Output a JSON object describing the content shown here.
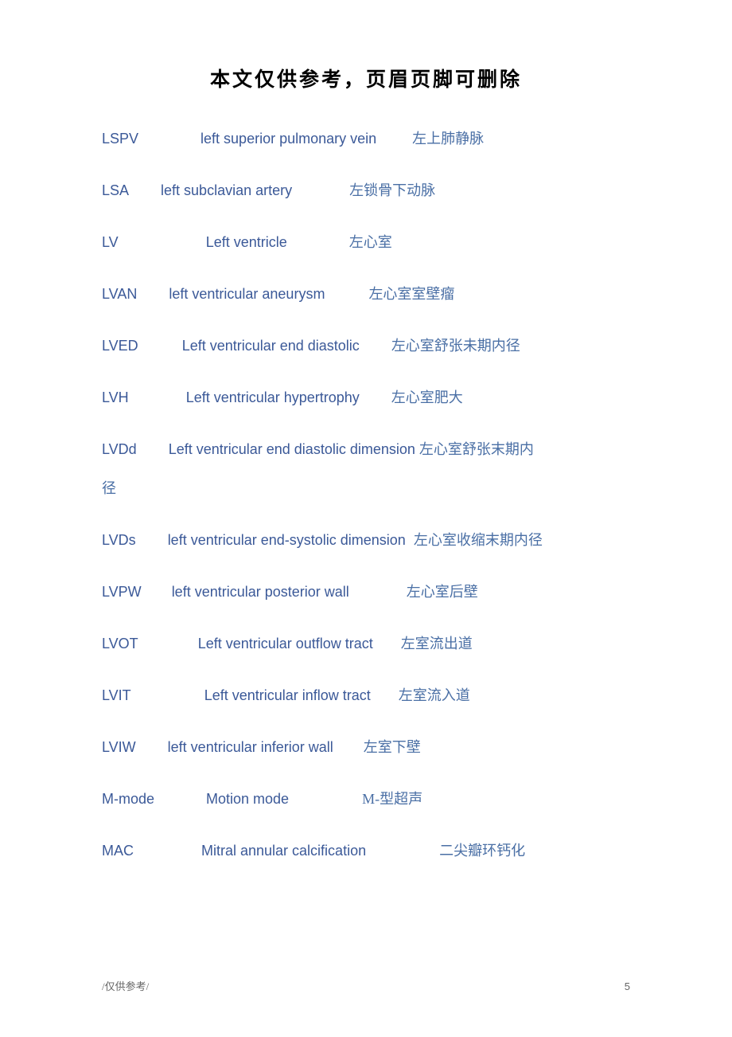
{
  "header": {
    "title": "本文仅供参考，页眉页脚可删除"
  },
  "entries": [
    {
      "abbr": "LSPV",
      "english": "left superior pulmonary vein",
      "chinese": "左上肺静脉",
      "gap1": 78,
      "gap2": 45
    },
    {
      "abbr": "LSA",
      "english": "left subclavian artery",
      "chinese": "左锁骨下动脉",
      "gap1": 40,
      "gap2": 72
    },
    {
      "abbr": "LV",
      "english": "Left ventricle",
      "chinese": "左心室",
      "gap1": 110,
      "gap2": 78
    },
    {
      "abbr": "LVAN",
      "english": "left ventricular aneurysm",
      "chinese": "左心室室壁瘤",
      "gap1": 40,
      "gap2": 55
    },
    {
      "abbr": "LVED",
      "english": "Left ventricular end diastolic",
      "chinese": "左心室舒张未期内径",
      "gap1": 55,
      "gap2": 40
    },
    {
      "abbr": "LVH",
      "english": "Left ventricular hypertrophy",
      "chinese": "左心室肥大",
      "gap1": 72,
      "gap2": 40
    },
    {
      "abbr": "LVDd",
      "english": "Left ventricular end diastolic dimension",
      "chinese": "左心室舒张末期内",
      "chinese_cont": "径",
      "gap1": 40,
      "gap2": 5,
      "wrapped": true
    },
    {
      "abbr": "LVDs",
      "english": "left ventricular end-systolic dimension",
      "chinese": "左心室收缩末期内径",
      "gap1": 40,
      "gap2": 10
    },
    {
      "abbr": "LVPW",
      "english": "left ventricular posterior wall",
      "chinese": "左心室后壁",
      "gap1": 38,
      "gap2": 72
    },
    {
      "abbr": "LVOT",
      "english": "Left ventricular outflow tract",
      "chinese": "左室流出道",
      "gap1": 75,
      "gap2": 35
    },
    {
      "abbr": "LVIT",
      "english": "Left ventricular inflow tract",
      "chinese": "左室流入道",
      "gap1": 92,
      "gap2": 35
    },
    {
      "abbr": "LVIW",
      "english": "left ventricular inferior wall",
      "chinese": "左室下壁",
      "gap1": 40,
      "gap2": 38
    },
    {
      "abbr": "M-mode",
      "english": "Motion mode",
      "chinese": "M-型超声",
      "gap1": 65,
      "gap2": 92
    },
    {
      "abbr": "MAC",
      "english": "Mitral annular calcification",
      "chinese": "二尖瓣环钙化",
      "gap1": 85,
      "gap2": 92
    }
  ],
  "footer": {
    "left": "/仅供参考/",
    "page": "5"
  },
  "colors": {
    "text_primary": "#3b5998",
    "text_chinese": "#4a6fa5",
    "header_text": "#000000",
    "footer_text": "#666666",
    "background": "#ffffff"
  },
  "typography": {
    "header_fontsize": 25,
    "body_fontsize": 18,
    "footer_fontsize": 13
  }
}
